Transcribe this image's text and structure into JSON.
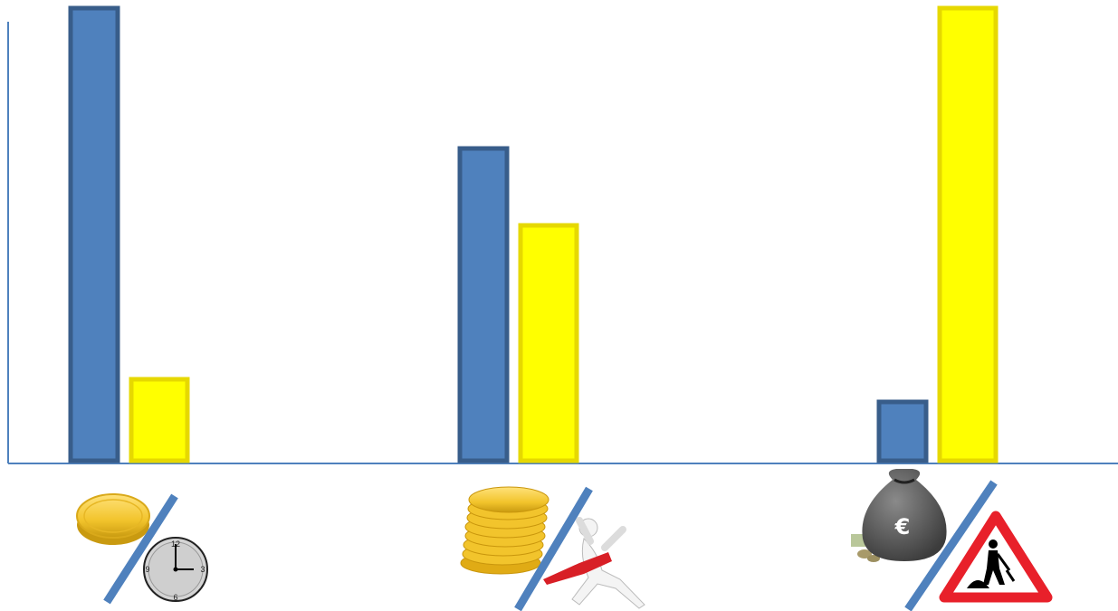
{
  "chart_data": {
    "type": "bar",
    "categories": [
      "coin-per-clock",
      "coins-per-finish-runner",
      "money-bag-per-roadwork"
    ],
    "category_icons": [
      {
        "left": "gold-coin-icon",
        "right": "clock-icon"
      },
      {
        "left": "coin-stack-icon",
        "right": "finish-line-runner-icon"
      },
      {
        "left": "euro-money-bag-icon",
        "right": "roadwork-warning-sign-icon"
      }
    ],
    "series": [
      {
        "values": [
          100,
          69,
          13
        ],
        "color": "#4f81bd",
        "stroke": "#385d8a"
      },
      {
        "values": [
          18,
          52,
          100
        ],
        "color": "#ffff00",
        "stroke": "#e6d800"
      }
    ],
    "ylim": [
      0,
      100
    ],
    "grid": false,
    "legend": "none",
    "clock_numbers": [
      "12",
      "3",
      "6",
      "9"
    ],
    "euro_symbol": "€"
  },
  "colors": {
    "axis": "#4f81bd",
    "slash": "#4f81bd",
    "coin_gold": "#f2c42c",
    "money_bag": "#5a5a5a",
    "warning_red": "#e8202a"
  }
}
